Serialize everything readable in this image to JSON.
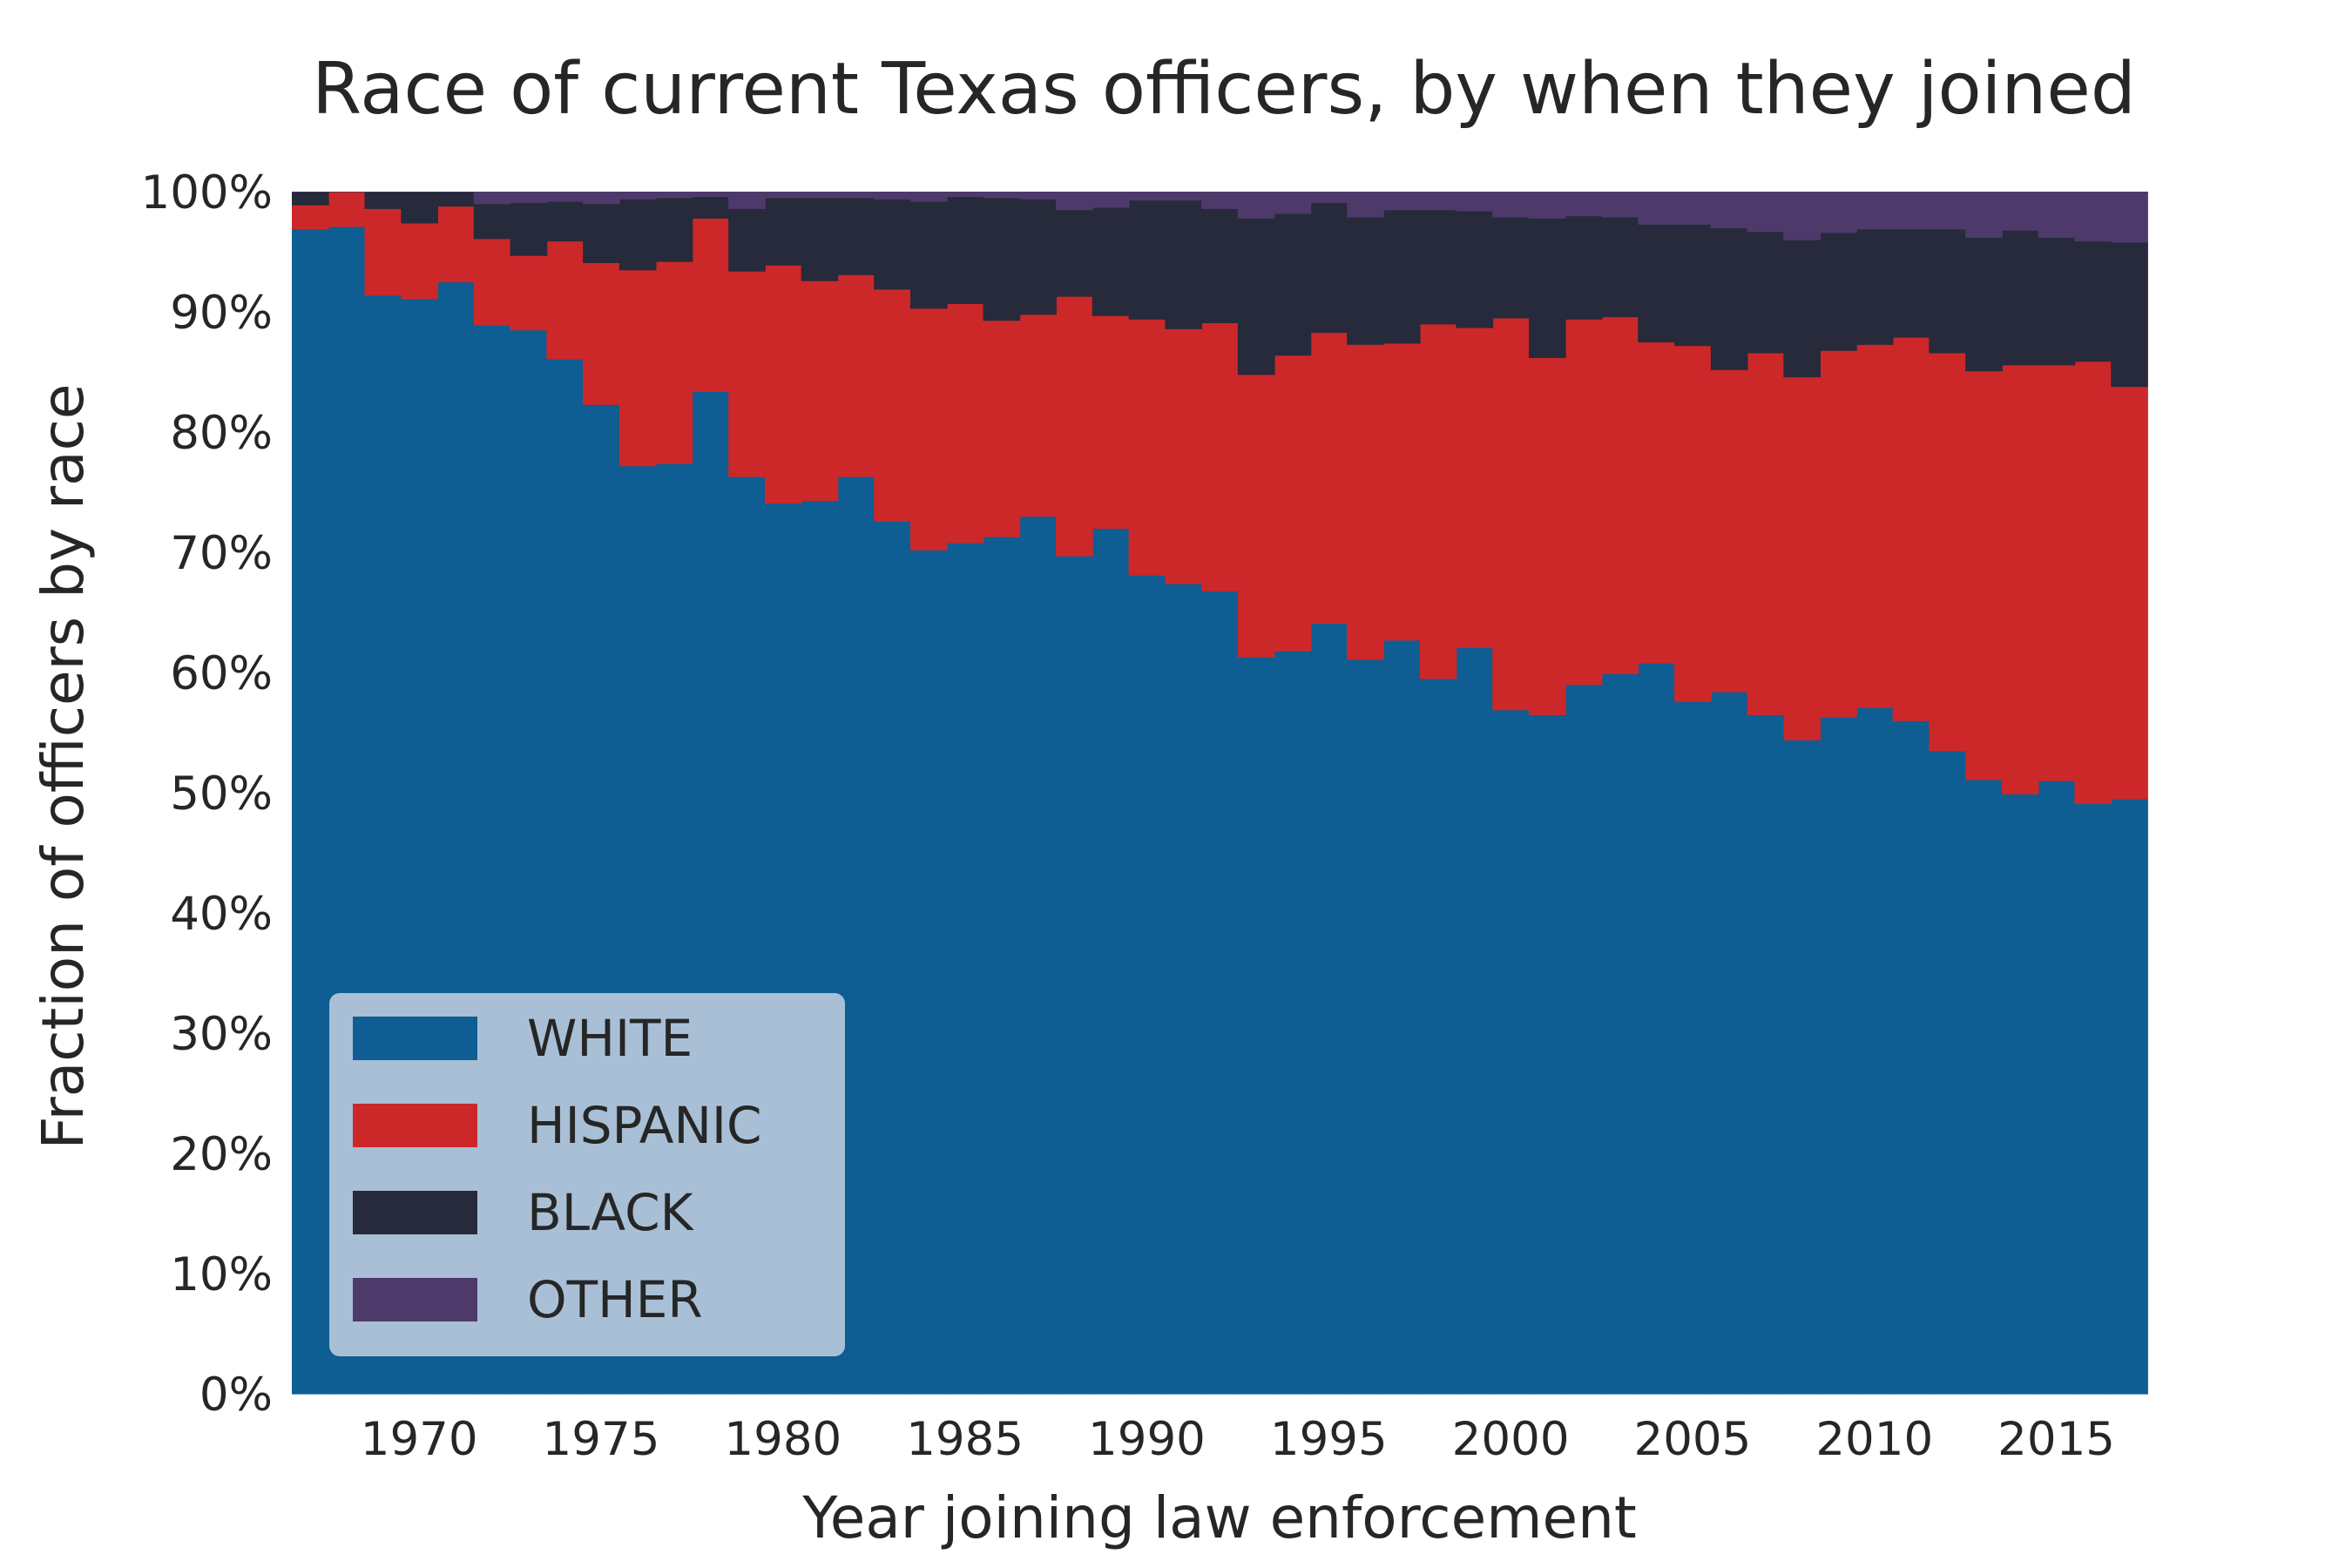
{
  "chart_data": {
    "type": "area",
    "title": "Race of current Texas officers, by when they joined",
    "xlabel": "Year joining law enforcement",
    "ylabel": "Fraction of officers by race",
    "xlim": [
      1966.5,
      2017.5
    ],
    "ylim": [
      0,
      1
    ],
    "stacked": true,
    "step": true,
    "grid": true,
    "legend_position": "lower-left",
    "x_ticks": [
      1970,
      1975,
      1980,
      1985,
      1990,
      1995,
      2000,
      2005,
      2010,
      2015
    ],
    "x_tick_labels": [
      "1970",
      "1975",
      "1980",
      "1985",
      "1990",
      "1995",
      "2000",
      "2005",
      "2010",
      "2015"
    ],
    "y_ticks": [
      0,
      0.1,
      0.2,
      0.3,
      0.4,
      0.5,
      0.6,
      0.7,
      0.8,
      0.9,
      1.0
    ],
    "y_tick_labels": [
      "0%",
      "10%",
      "20%",
      "30%",
      "40%",
      "50%",
      "60%",
      "70%",
      "80%",
      "90%",
      "100%"
    ],
    "x": [
      1967,
      1968,
      1969,
      1970,
      1971,
      1972,
      1973,
      1974,
      1975,
      1976,
      1977,
      1978,
      1979,
      1980,
      1981,
      1982,
      1983,
      1984,
      1985,
      1986,
      1987,
      1988,
      1989,
      1990,
      1991,
      1992,
      1993,
      1994,
      1995,
      1996,
      1997,
      1998,
      1999,
      2000,
      2001,
      2002,
      2003,
      2004,
      2005,
      2006,
      2007,
      2008,
      2009,
      2010,
      2011,
      2012,
      2013,
      2014,
      2015,
      2016,
      2017
    ],
    "series": [
      {
        "name": "WHITE",
        "color": "#0e5d93",
        "values": [
          0.969,
          0.971,
          0.914,
          0.911,
          0.925,
          0.889,
          0.885,
          0.861,
          0.823,
          0.772,
          0.774,
          0.834,
          0.763,
          0.741,
          0.743,
          0.763,
          0.726,
          0.702,
          0.708,
          0.713,
          0.73,
          0.697,
          0.72,
          0.681,
          0.674,
          0.668,
          0.613,
          0.618,
          0.641,
          0.611,
          0.627,
          0.595,
          0.621,
          0.569,
          0.565,
          0.59,
          0.599,
          0.608,
          0.576,
          0.584,
          0.565,
          0.544,
          0.563,
          0.571,
          0.56,
          0.535,
          0.511,
          0.499,
          0.51,
          0.491,
          0.495
        ]
      },
      {
        "name": "HISPANIC",
        "color": "#cc2829",
        "values": [
          0.02,
          0.029,
          0.072,
          0.063,
          0.063,
          0.072,
          0.062,
          0.098,
          0.118,
          0.163,
          0.168,
          0.144,
          0.171,
          0.198,
          0.183,
          0.168,
          0.193,
          0.201,
          0.199,
          0.18,
          0.168,
          0.216,
          0.177,
          0.213,
          0.212,
          0.223,
          0.235,
          0.246,
          0.242,
          0.262,
          0.247,
          0.295,
          0.266,
          0.326,
          0.297,
          0.304,
          0.297,
          0.267,
          0.296,
          0.268,
          0.301,
          0.302,
          0.305,
          0.302,
          0.319,
          0.331,
          0.34,
          0.357,
          0.346,
          0.368,
          0.343
        ]
      },
      {
        "name": "BLACK",
        "color": "#262a3a",
        "values": [
          0.011,
          0.0,
          0.014,
          0.026,
          0.012,
          0.029,
          0.044,
          0.033,
          0.049,
          0.059,
          0.053,
          0.018,
          0.052,
          0.056,
          0.069,
          0.064,
          0.075,
          0.089,
          0.089,
          0.102,
          0.096,
          0.072,
          0.09,
          0.099,
          0.107,
          0.095,
          0.13,
          0.118,
          0.108,
          0.106,
          0.111,
          0.095,
          0.097,
          0.084,
          0.116,
          0.086,
          0.083,
          0.098,
          0.101,
          0.118,
          0.101,
          0.114,
          0.098,
          0.096,
          0.09,
          0.103,
          0.111,
          0.112,
          0.106,
          0.1,
          0.12
        ]
      },
      {
        "name": "OTHER",
        "color": "#4d3a6b",
        "values": [
          0.0,
          0.0,
          0.0,
          0.0,
          0.0,
          0.01,
          0.009,
          0.008,
          0.01,
          0.006,
          0.005,
          0.004,
          0.014,
          0.005,
          0.005,
          0.005,
          0.006,
          0.008,
          0.004,
          0.005,
          0.006,
          0.015,
          0.013,
          0.007,
          0.007,
          0.014,
          0.022,
          0.018,
          0.009,
          0.021,
          0.015,
          0.015,
          0.016,
          0.021,
          0.022,
          0.02,
          0.021,
          0.027,
          0.027,
          0.03,
          0.033,
          0.04,
          0.034,
          0.031,
          0.031,
          0.031,
          0.038,
          0.032,
          0.038,
          0.041,
          0.042
        ]
      }
    ],
    "colors": {
      "background": "#ffffff",
      "plot_background": "#eaeaf2",
      "grid": "#ffffff",
      "text": "#262626",
      "legend_background": "#a8bfd6"
    }
  }
}
